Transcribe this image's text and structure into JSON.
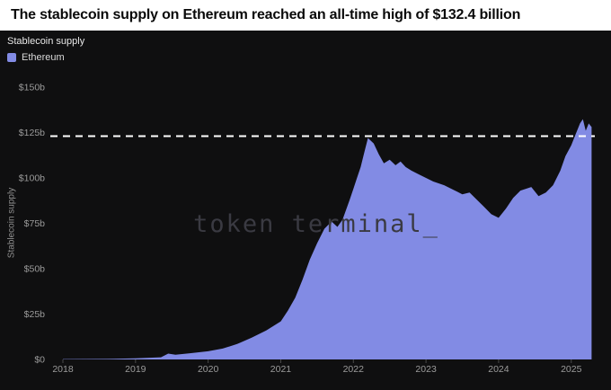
{
  "header": {
    "title": "The stablecoin supply on Ethereum reached an all-time high of $132.4 billion"
  },
  "chart": {
    "panel_title": "Stablecoin supply",
    "y_axis_label": "Stablecoin supply",
    "watermark": "token terminal_",
    "legend": [
      {
        "label": "Ethereum",
        "color": "#828be4"
      }
    ]
  },
  "colors": {
    "background": "#0f0f10",
    "accent": "#828be4",
    "reference_line": "#ffffff",
    "axis_text": "#9b9b9b",
    "watermark": "#3a3a42"
  },
  "chart_data": {
    "type": "area",
    "title": "Stablecoin supply",
    "ylabel": "Stablecoin supply",
    "xlabel": "",
    "legend_position": "top-left",
    "grid": false,
    "x_ticks": [
      "2018",
      "2019",
      "2020",
      "2021",
      "2022",
      "2023",
      "2024",
      "2025"
    ],
    "x_tick_values": [
      2018,
      2019,
      2020,
      2021,
      2022,
      2023,
      2024,
      2025
    ],
    "y_ticks": [
      "$0",
      "$25b",
      "$50b",
      "$75b",
      "$100b",
      "$125b",
      "$150b"
    ],
    "y_tick_values": [
      0,
      25,
      50,
      75,
      100,
      125,
      150
    ],
    "xlim": [
      2018,
      2025.3
    ],
    "ylim": [
      0,
      150
    ],
    "all_time_high": 132.4,
    "reference_line": {
      "value": 123,
      "style": "dashed",
      "color": "#ffffff"
    },
    "series": [
      {
        "name": "Ethereum",
        "color": "#828be4",
        "x": [
          2018.0,
          2018.6,
          2019.0,
          2019.35,
          2019.45,
          2019.55,
          2019.75,
          2020.0,
          2020.2,
          2020.4,
          2020.6,
          2020.8,
          2021.0,
          2021.1,
          2021.2,
          2021.3,
          2021.4,
          2021.5,
          2021.6,
          2021.7,
          2021.78,
          2021.85,
          2021.95,
          2022.0,
          2022.05,
          2022.1,
          2022.15,
          2022.2,
          2022.28,
          2022.35,
          2022.42,
          2022.5,
          2022.58,
          2022.65,
          2022.72,
          2022.8,
          2022.9,
          2023.0,
          2023.1,
          2023.25,
          2023.4,
          2023.5,
          2023.6,
          2023.7,
          2023.8,
          2023.9,
          2024.0,
          2024.1,
          2024.2,
          2024.3,
          2024.45,
          2024.55,
          2024.65,
          2024.75,
          2024.85,
          2024.92,
          2025.0,
          2025.06,
          2025.12,
          2025.16,
          2025.2,
          2025.24,
          2025.28
        ],
        "values": [
          0.2,
          0.3,
          0.6,
          1.2,
          3.2,
          2.6,
          3.4,
          4.5,
          6,
          8.5,
          12,
          16,
          21,
          27,
          34,
          44,
          55,
          64,
          72,
          76,
          73,
          77,
          88,
          94,
          100,
          106,
          114,
          122,
          119,
          113,
          108,
          110,
          107,
          109,
          106,
          104,
          102,
          100,
          98,
          96,
          93,
          91,
          92,
          88,
          84,
          80,
          78,
          83,
          89,
          93,
          95,
          90,
          92,
          96,
          104,
          112,
          118,
          124,
          130,
          132.4,
          126,
          130,
          128
        ]
      }
    ]
  }
}
